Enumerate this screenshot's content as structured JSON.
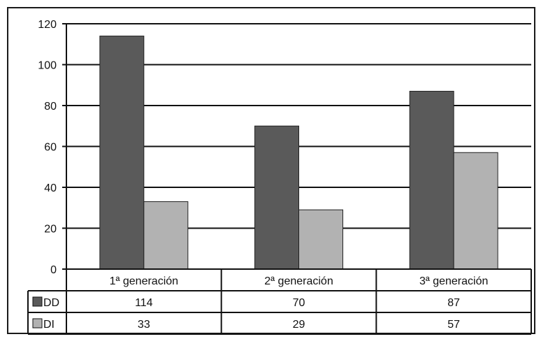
{
  "chart_data": {
    "type": "bar",
    "categories": [
      "1ª generación",
      "2ª generación",
      "3ª generación"
    ],
    "series": [
      {
        "name": "DD",
        "values": [
          114,
          70,
          87
        ],
        "color": "#5a5a5a"
      },
      {
        "name": "DI",
        "values": [
          33,
          29,
          57
        ],
        "color": "#b2b2b2"
      }
    ],
    "ylim": [
      0,
      120
    ],
    "yticks": [
      0,
      20,
      40,
      60,
      80,
      100,
      120
    ],
    "grid": true,
    "legend": "data table below chart"
  }
}
